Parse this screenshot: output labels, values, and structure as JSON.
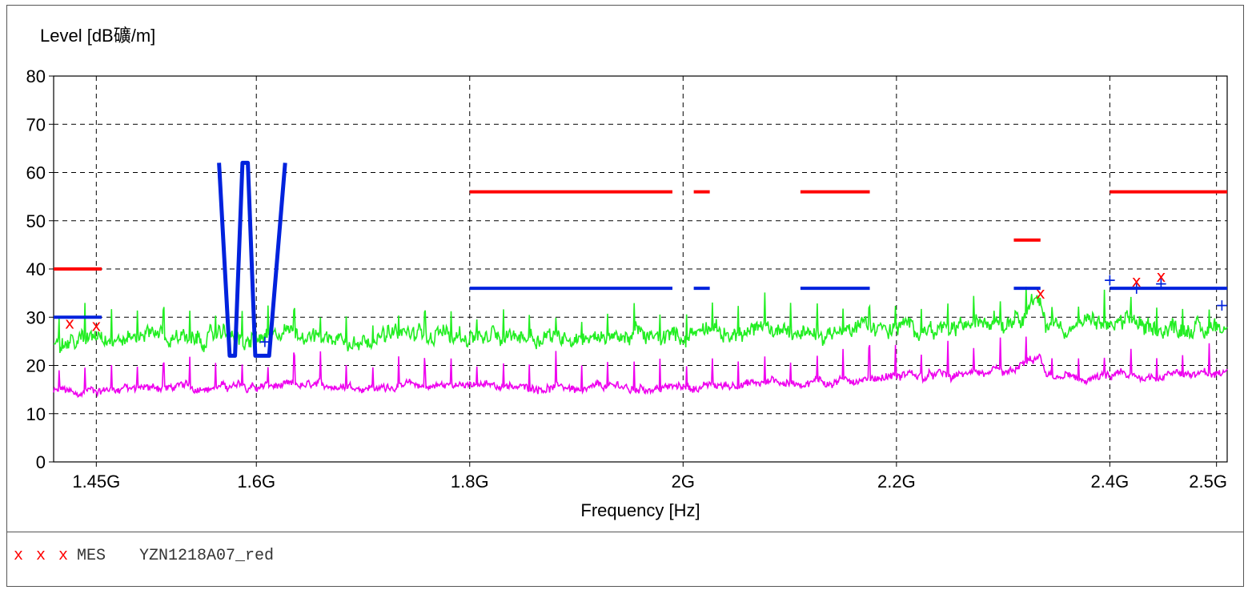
{
  "chart_data": {
    "type": "line",
    "ylabel": "Level [dB礦/m]",
    "xlabel": "Frequency [Hz]",
    "xlim": [
      1.41,
      2.51
    ],
    "ylim": [
      0,
      80
    ],
    "grid": true,
    "xticks": [
      {
        "value": 1.45,
        "label": "1.45G"
      },
      {
        "value": 1.6,
        "label": "1.6G"
      },
      {
        "value": 1.8,
        "label": "1.8G"
      },
      {
        "value": 2.0,
        "label": "2G"
      },
      {
        "value": 2.2,
        "label": "2.2G"
      },
      {
        "value": 2.4,
        "label": "2.4G"
      },
      {
        "value": 2.5,
        "label": "2.5G"
      }
    ],
    "yticks": [
      0,
      10,
      20,
      30,
      40,
      50,
      60,
      70,
      80
    ],
    "limit_segments_red": [
      [
        1.41,
        1.455,
        40
      ],
      [
        1.8,
        1.99,
        56
      ],
      [
        2.01,
        2.025,
        56
      ],
      [
        2.11,
        2.175,
        56
      ],
      [
        2.31,
        2.335,
        46
      ],
      [
        2.4,
        2.51,
        56
      ]
    ],
    "limit_segments_blue": [
      [
        1.41,
        1.455,
        30
      ],
      [
        1.8,
        1.99,
        36
      ],
      [
        2.01,
        2.025,
        36
      ],
      [
        2.11,
        2.175,
        36
      ],
      [
        2.31,
        2.335,
        36
      ],
      [
        2.4,
        2.51,
        36
      ]
    ],
    "blue_notch": [
      [
        1.565,
        62
      ],
      [
        1.575,
        22
      ],
      [
        1.58,
        22
      ],
      [
        1.587,
        62
      ],
      [
        1.592,
        62
      ],
      [
        1.599,
        22
      ],
      [
        1.612,
        22
      ],
      [
        1.627,
        62
      ]
    ],
    "peak_trace_profile": [
      [
        1.41,
        25
      ],
      [
        1.5,
        26
      ],
      [
        1.6,
        25.5
      ],
      [
        1.7,
        26
      ],
      [
        1.8,
        26
      ],
      [
        1.9,
        26.5
      ],
      [
        2.0,
        26
      ],
      [
        2.1,
        27
      ],
      [
        2.2,
        28
      ],
      [
        2.3,
        28.5
      ],
      [
        2.31,
        31
      ],
      [
        2.335,
        33
      ],
      [
        2.34,
        28
      ],
      [
        2.4,
        28
      ],
      [
        2.51,
        28
      ]
    ],
    "avg_trace_profile": [
      [
        1.41,
        14.5
      ],
      [
        1.5,
        15.5
      ],
      [
        1.6,
        15.5
      ],
      [
        1.7,
        15.5
      ],
      [
        1.8,
        16
      ],
      [
        1.9,
        15.5
      ],
      [
        2.0,
        15.5
      ],
      [
        2.1,
        16.5
      ],
      [
        2.2,
        18
      ],
      [
        2.3,
        18
      ],
      [
        2.31,
        20
      ],
      [
        2.335,
        21.5
      ],
      [
        2.34,
        17.5
      ],
      [
        2.4,
        17.5
      ],
      [
        2.51,
        18
      ]
    ],
    "measurements_red": [
      [
        1.425,
        28.8
      ],
      [
        1.45,
        28.3
      ],
      [
        2.335,
        35
      ],
      [
        2.425,
        37.5
      ],
      [
        2.448,
        38.5
      ]
    ],
    "measurements_blue": [
      [
        1.608,
        25
      ],
      [
        2.4,
        37.8
      ],
      [
        2.425,
        36
      ],
      [
        2.448,
        37
      ],
      [
        2.505,
        32.5
      ]
    ],
    "colors": {
      "peak": "#22ee22",
      "average": "#ee00ee",
      "limit_red": "#ff0000",
      "limit_blue": "#0022dd"
    }
  },
  "legend": {
    "marks": "x x x",
    "label": "MES",
    "name": "YZN1218A07_red"
  }
}
